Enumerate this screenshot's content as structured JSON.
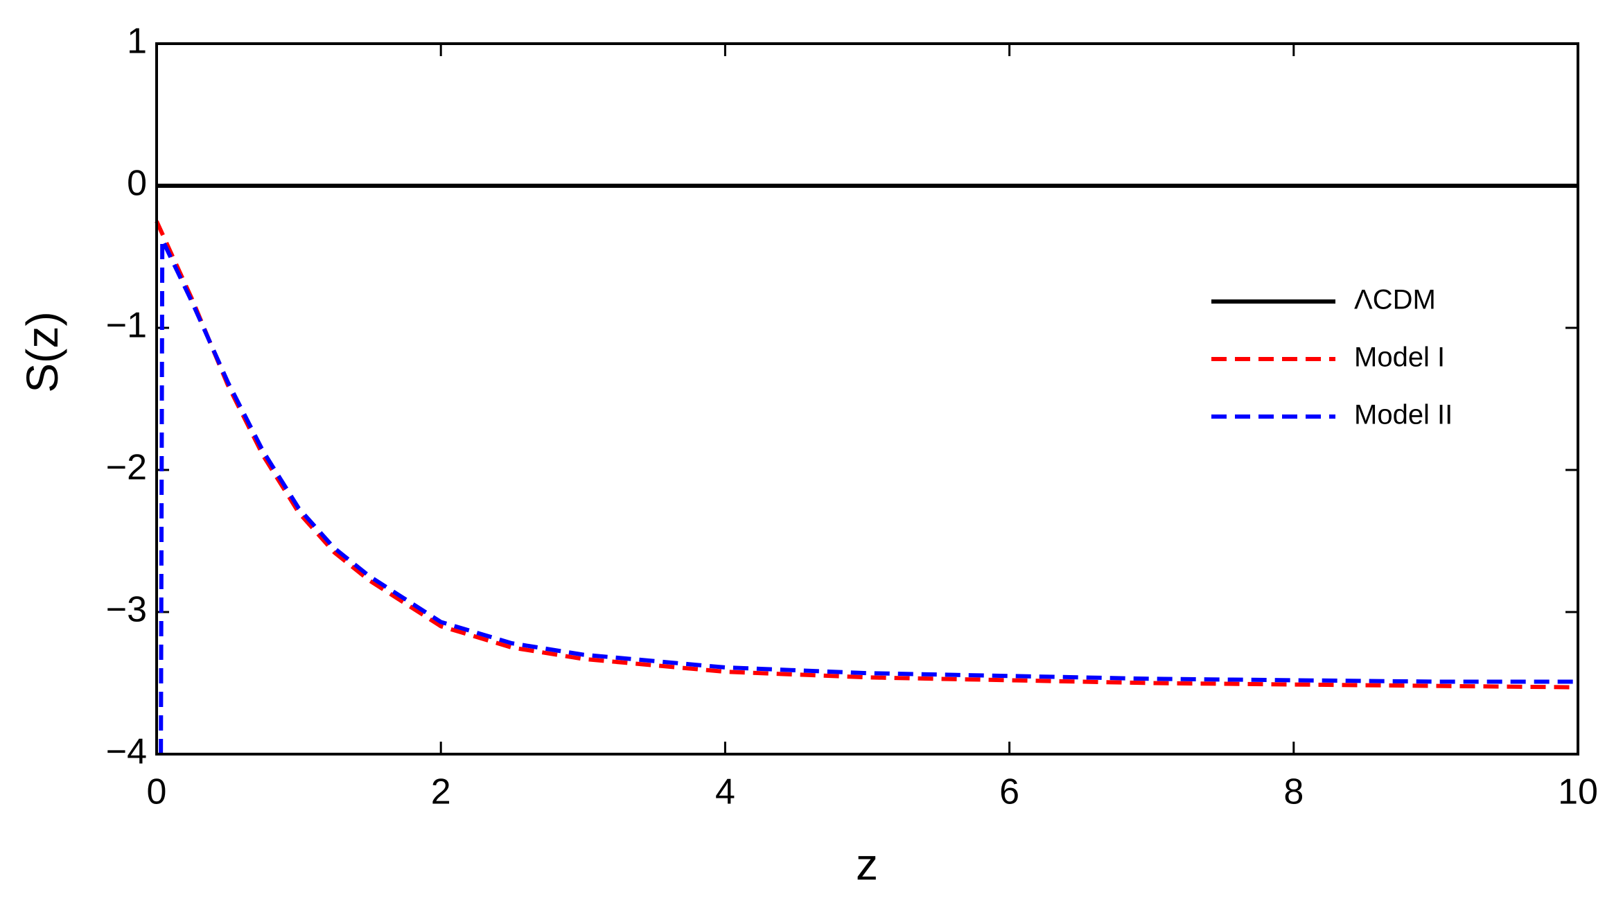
{
  "chart_data": {
    "type": "line",
    "xlabel": "z",
    "ylabel": "S(z)",
    "xlim": [
      0,
      10
    ],
    "ylim": [
      -4,
      1
    ],
    "xticks": [
      0,
      2,
      4,
      6,
      8,
      10
    ],
    "yticks": [
      {
        "value": -4,
        "label": "−4"
      },
      {
        "value": -3,
        "label": "−3"
      },
      {
        "value": -2,
        "label": "−2"
      },
      {
        "value": -1,
        "label": "−1"
      },
      0,
      1
    ],
    "legend": "right",
    "series": [
      {
        "name": "ΛCDM",
        "color": "#000000",
        "style": "solid",
        "x": [
          0,
          10
        ],
        "values": [
          0,
          0
        ]
      },
      {
        "name": "Model I",
        "color": "#ff0000",
        "style": "dashed",
        "x": [
          0,
          0.25,
          0.5,
          0.75,
          1,
          1.25,
          1.5,
          2,
          2.5,
          3,
          4,
          5,
          6,
          7,
          8,
          9,
          10
        ],
        "values": [
          -0.25,
          -0.8,
          -1.4,
          -1.9,
          -2.3,
          -2.58,
          -2.78,
          -3.1,
          -3.25,
          -3.33,
          -3.42,
          -3.46,
          -3.48,
          -3.5,
          -3.51,
          -3.52,
          -3.53
        ]
      },
      {
        "name": "Model II",
        "color": "#0000ff",
        "style": "dashed",
        "x": [
          0.03,
          0.04,
          0.25,
          0.5,
          0.75,
          1,
          1.25,
          1.5,
          2,
          2.5,
          3,
          4,
          5,
          6,
          7,
          8,
          9,
          10
        ],
        "values": [
          -4,
          -0.38,
          -0.82,
          -1.38,
          -1.87,
          -2.27,
          -2.55,
          -2.75,
          -3.07,
          -3.22,
          -3.3,
          -3.39,
          -3.43,
          -3.45,
          -3.47,
          -3.48,
          -3.49,
          -3.49
        ]
      }
    ]
  }
}
